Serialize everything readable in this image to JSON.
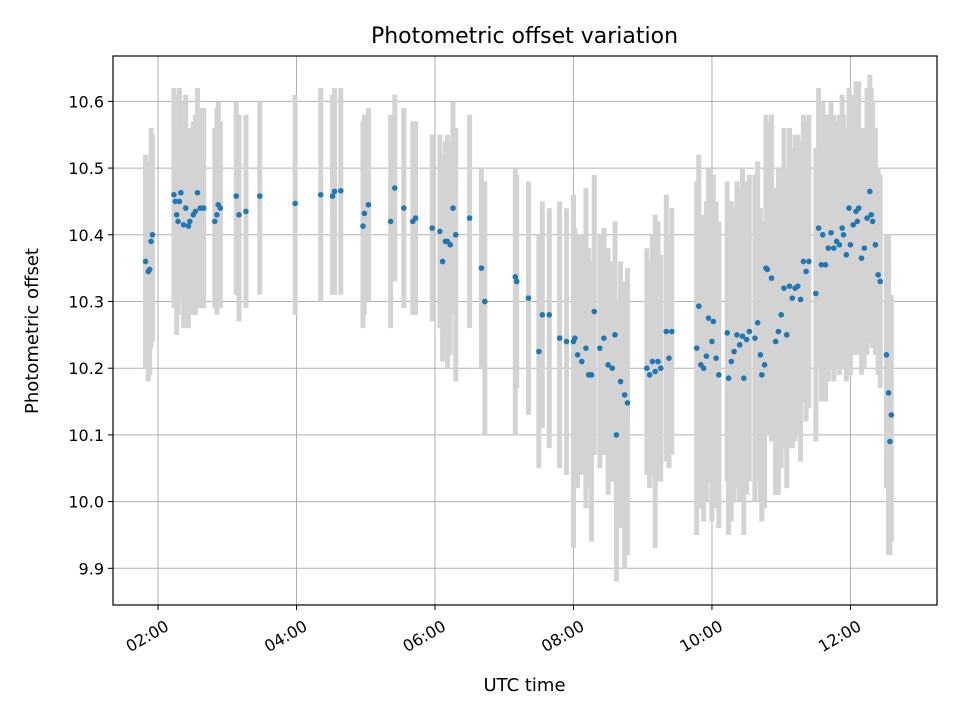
{
  "chart_data": {
    "type": "scatter",
    "title": "Photometric offset variation",
    "xlabel": "UTC time",
    "ylabel": "Photometric offset",
    "x_unit": "hours UTC",
    "xlim": [
      1.35,
      13.25
    ],
    "ylim": [
      9.845,
      10.668
    ],
    "x_ticks": [
      {
        "value": 2,
        "label": "02:00"
      },
      {
        "value": 4,
        "label": "04:00"
      },
      {
        "value": 6,
        "label": "06:00"
      },
      {
        "value": 8,
        "label": "08:00"
      },
      {
        "value": 10,
        "label": "10:00"
      },
      {
        "value": 12,
        "label": "12:00"
      }
    ],
    "y_ticks": [
      {
        "value": 9.9,
        "label": "9.9"
      },
      {
        "value": 10.0,
        "label": "10.0"
      },
      {
        "value": 10.1,
        "label": "10.1"
      },
      {
        "value": 10.2,
        "label": "10.2"
      },
      {
        "value": 10.3,
        "label": "10.3"
      },
      {
        "value": 10.4,
        "label": "10.4"
      },
      {
        "value": 10.5,
        "label": "10.5"
      },
      {
        "value": 10.6,
        "label": "10.6"
      }
    ],
    "grid": true,
    "point_color": "#1f77b4",
    "errorbar_color": "#d3d3d3",
    "series": [
      {
        "points": [
          [
            1.82,
            10.36,
            10.2,
            10.52
          ],
          [
            1.86,
            10.345,
            10.18,
            10.51
          ],
          [
            1.88,
            10.348,
            10.19,
            10.5
          ],
          [
            1.9,
            10.39,
            10.23,
            10.56
          ],
          [
            1.92,
            10.4,
            10.24,
            10.55
          ],
          [
            2.23,
            10.46,
            10.29,
            10.62
          ],
          [
            2.25,
            10.45,
            10.29,
            10.61
          ],
          [
            2.27,
            10.43,
            10.25,
            10.6
          ],
          [
            2.29,
            10.42,
            10.28,
            10.56
          ],
          [
            2.31,
            10.45,
            10.3,
            10.62
          ],
          [
            2.33,
            10.463,
            10.3,
            10.6
          ],
          [
            2.37,
            10.415,
            10.26,
            10.56
          ],
          [
            2.4,
            10.44,
            10.27,
            10.61
          ],
          [
            2.44,
            10.413,
            10.26,
            10.56
          ],
          [
            2.46,
            10.42,
            10.28,
            10.56
          ],
          [
            2.51,
            10.43,
            10.28,
            10.57
          ],
          [
            2.54,
            10.435,
            10.28,
            10.58
          ],
          [
            2.57,
            10.463,
            10.3,
            10.62
          ],
          [
            2.61,
            10.44,
            10.29,
            10.59
          ],
          [
            2.66,
            10.44,
            10.29,
            10.59
          ],
          [
            2.82,
            10.42,
            10.29,
            10.56
          ],
          [
            2.85,
            10.43,
            10.28,
            10.59
          ],
          [
            2.87,
            10.445,
            10.29,
            10.6
          ],
          [
            2.9,
            10.44,
            10.29,
            10.57
          ],
          [
            3.13,
            10.458,
            10.31,
            10.6
          ],
          [
            3.17,
            10.43,
            10.27,
            10.58
          ],
          [
            3.27,
            10.435,
            10.29,
            10.58
          ],
          [
            3.47,
            10.458,
            10.31,
            10.6
          ],
          [
            3.98,
            10.447,
            10.28,
            10.61
          ],
          [
            4.35,
            10.46,
            10.3,
            10.62
          ],
          [
            4.52,
            10.458,
            10.31,
            10.61
          ],
          [
            4.55,
            10.465,
            10.31,
            10.62
          ],
          [
            4.64,
            10.466,
            10.31,
            10.62
          ],
          [
            4.96,
            10.413,
            10.26,
            10.57
          ],
          [
            4.98,
            10.432,
            10.28,
            10.58
          ],
          [
            5.04,
            10.445,
            10.3,
            10.59
          ],
          [
            5.36,
            10.42,
            10.26,
            10.58
          ],
          [
            5.42,
            10.47,
            10.33,
            10.61
          ],
          [
            5.55,
            10.44,
            10.29,
            10.59
          ],
          [
            5.68,
            10.42,
            10.28,
            10.57
          ],
          [
            5.72,
            10.425,
            10.28,
            10.57
          ],
          [
            5.96,
            10.41,
            10.27,
            10.55
          ],
          [
            6.07,
            10.405,
            10.26,
            10.55
          ],
          [
            6.11,
            10.36,
            10.21,
            10.52
          ],
          [
            6.15,
            10.39,
            10.24,
            10.54
          ],
          [
            6.18,
            10.39,
            10.2,
            10.55
          ],
          [
            6.22,
            10.385,
            10.22,
            10.54
          ],
          [
            6.26,
            10.44,
            10.28,
            10.6
          ],
          [
            6.3,
            10.4,
            10.18,
            10.56
          ],
          [
            6.5,
            10.425,
            10.26,
            10.58
          ],
          [
            6.67,
            10.35,
            10.2,
            10.5
          ],
          [
            6.72,
            10.3,
            10.1,
            10.48
          ],
          [
            7.16,
            10.337,
            10.1,
            10.5
          ],
          [
            7.18,
            10.33,
            10.17,
            10.49
          ],
          [
            7.35,
            10.305,
            10.13,
            10.48
          ],
          [
            7.5,
            10.225,
            10.05,
            10.4
          ],
          [
            7.55,
            10.28,
            10.11,
            10.45
          ],
          [
            7.65,
            10.28,
            10.08,
            10.44
          ],
          [
            7.8,
            10.245,
            10.05,
            10.45
          ],
          [
            7.9,
            10.24,
            10.04,
            10.44
          ],
          [
            8.0,
            10.24,
            9.93,
            10.46
          ],
          [
            8.02,
            10.245,
            10.08,
            10.41
          ],
          [
            8.06,
            10.22,
            10.02,
            10.4
          ],
          [
            8.12,
            10.21,
            10.04,
            10.4
          ],
          [
            8.18,
            10.23,
            9.99,
            10.47
          ],
          [
            8.22,
            10.19,
            10.02,
            10.38
          ],
          [
            8.26,
            10.19,
            9.94,
            10.36
          ],
          [
            8.3,
            10.285,
            10.07,
            10.49
          ],
          [
            8.38,
            10.23,
            10.05,
            10.4
          ],
          [
            8.44,
            10.245,
            10.07,
            10.41
          ],
          [
            8.5,
            10.205,
            10.01,
            10.38
          ],
          [
            8.56,
            10.2,
            10.03,
            10.36
          ],
          [
            8.6,
            10.25,
            10.08,
            10.42
          ],
          [
            8.62,
            10.1,
            9.88,
            10.3
          ],
          [
            8.68,
            10.18,
            9.96,
            10.36
          ],
          [
            8.74,
            10.16,
            9.9,
            10.33
          ],
          [
            8.78,
            10.148,
            9.92,
            10.35
          ],
          [
            9.06,
            10.2,
            10.04,
            10.38
          ],
          [
            9.1,
            10.19,
            10.02,
            10.36
          ],
          [
            9.14,
            10.21,
            10.04,
            10.4
          ],
          [
            9.18,
            10.195,
            9.93,
            10.43
          ],
          [
            9.22,
            10.21,
            10.03,
            10.42
          ],
          [
            9.26,
            10.2,
            10.03,
            10.37
          ],
          [
            9.34,
            10.255,
            10.06,
            10.46
          ],
          [
            9.38,
            10.215,
            10.05,
            10.4
          ],
          [
            9.42,
            10.255,
            10.07,
            10.44
          ],
          [
            9.78,
            10.23,
            9.95,
            10.48
          ],
          [
            9.81,
            10.293,
            10.0,
            10.52
          ],
          [
            9.84,
            10.205,
            9.99,
            10.42
          ],
          [
            9.88,
            10.2,
            9.97,
            10.43
          ],
          [
            9.92,
            10.218,
            10.0,
            10.45
          ],
          [
            9.95,
            10.275,
            10.03,
            10.5
          ],
          [
            10.0,
            10.24,
            9.97,
            10.47
          ],
          [
            10.02,
            10.27,
            10.0,
            10.49
          ],
          [
            10.06,
            10.215,
            9.99,
            10.45
          ],
          [
            10.1,
            10.19,
            9.96,
            10.42
          ],
          [
            10.22,
            10.253,
            10.03,
            10.48
          ],
          [
            10.24,
            10.185,
            9.95,
            10.42
          ],
          [
            10.28,
            10.21,
            9.97,
            10.45
          ],
          [
            10.32,
            10.225,
            10.0,
            10.44
          ],
          [
            10.36,
            10.25,
            10.02,
            10.48
          ],
          [
            10.4,
            10.235,
            10.0,
            10.47
          ],
          [
            10.44,
            10.248,
            10.0,
            10.5
          ],
          [
            10.46,
            10.185,
            9.95,
            10.42
          ],
          [
            10.5,
            10.243,
            10.01,
            10.48
          ],
          [
            10.54,
            10.255,
            10.03,
            10.49
          ],
          [
            10.62,
            10.245,
            10.0,
            10.49
          ],
          [
            10.66,
            10.268,
            10.03,
            10.51
          ],
          [
            10.7,
            10.22,
            10.0,
            10.44
          ],
          [
            10.72,
            10.19,
            9.97,
            10.42
          ],
          [
            10.76,
            10.205,
            9.99,
            10.42
          ],
          [
            10.78,
            10.35,
            10.1,
            10.58
          ],
          [
            10.8,
            10.348,
            10.1,
            10.57
          ],
          [
            10.86,
            10.335,
            10.09,
            10.58
          ],
          [
            10.92,
            10.24,
            10.01,
            10.47
          ],
          [
            10.96,
            10.255,
            10.01,
            10.5
          ],
          [
            11.0,
            10.28,
            10.05,
            10.5
          ],
          [
            11.04,
            10.32,
            10.08,
            10.56
          ],
          [
            11.08,
            10.25,
            10.02,
            10.5
          ],
          [
            11.12,
            10.323,
            10.08,
            10.56
          ],
          [
            11.16,
            10.305,
            10.08,
            10.53
          ],
          [
            11.2,
            10.32,
            10.09,
            10.55
          ],
          [
            11.24,
            10.323,
            10.1,
            10.55
          ],
          [
            11.28,
            10.303,
            10.06,
            10.54
          ],
          [
            11.32,
            10.36,
            10.15,
            10.58
          ],
          [
            11.36,
            10.345,
            10.12,
            10.57
          ],
          [
            11.4,
            10.36,
            10.14,
            10.58
          ],
          [
            11.5,
            10.312,
            10.09,
            10.53
          ],
          [
            11.54,
            10.41,
            10.2,
            10.62
          ],
          [
            11.58,
            10.355,
            10.15,
            10.56
          ],
          [
            11.6,
            10.4,
            10.2,
            10.6
          ],
          [
            11.64,
            10.355,
            10.15,
            10.58
          ],
          [
            11.68,
            10.38,
            10.18,
            10.58
          ],
          [
            11.72,
            10.403,
            10.2,
            10.6
          ],
          [
            11.76,
            10.38,
            10.18,
            10.58
          ],
          [
            11.8,
            10.39,
            10.2,
            10.57
          ],
          [
            11.84,
            10.385,
            10.19,
            10.58
          ],
          [
            11.88,
            10.41,
            10.2,
            10.61
          ],
          [
            11.9,
            10.4,
            10.22,
            10.58
          ],
          [
            11.94,
            10.37,
            10.18,
            10.56
          ],
          [
            11.98,
            10.44,
            10.25,
            10.62
          ],
          [
            12.0,
            10.385,
            10.19,
            10.58
          ],
          [
            12.04,
            10.415,
            10.22,
            10.61
          ],
          [
            12.08,
            10.435,
            10.24,
            10.63
          ],
          [
            12.1,
            10.42,
            10.22,
            10.62
          ],
          [
            12.12,
            10.44,
            10.24,
            10.63
          ],
          [
            12.16,
            10.365,
            10.19,
            10.56
          ],
          [
            12.2,
            10.38,
            10.2,
            10.56
          ],
          [
            12.24,
            10.425,
            10.22,
            10.62
          ],
          [
            12.28,
            10.465,
            10.3,
            10.64
          ],
          [
            12.3,
            10.43,
            10.24,
            10.62
          ],
          [
            12.32,
            10.42,
            10.23,
            10.6
          ],
          [
            12.36,
            10.385,
            10.22,
            10.56
          ],
          [
            12.4,
            10.34,
            10.19,
            10.5
          ],
          [
            12.43,
            10.33,
            10.17,
            10.49
          ],
          [
            12.52,
            10.22,
            10.02,
            10.4
          ],
          [
            12.55,
            10.163,
            9.92,
            10.4
          ],
          [
            12.57,
            10.09,
            9.92,
            10.27
          ],
          [
            12.59,
            10.13,
            9.94,
            10.31
          ]
        ]
      }
    ]
  }
}
